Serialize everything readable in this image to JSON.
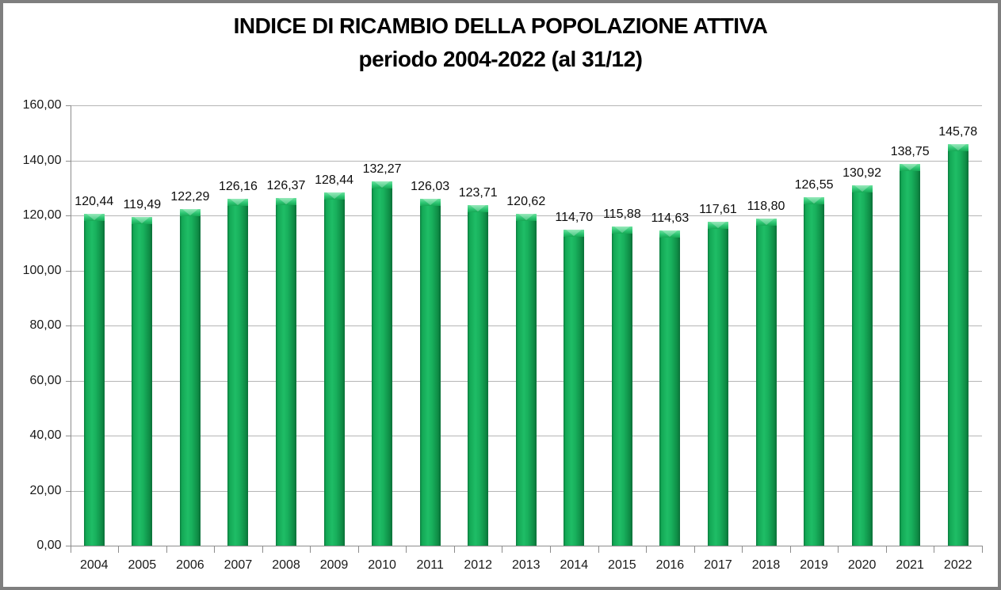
{
  "title": {
    "line1": "INDICE DI RICAMBIO DELLA POPOLAZIONE ATTIVA",
    "line2": "periodo 2004-2022 (al 31/12)"
  },
  "chart_data": {
    "type": "bar",
    "title": "INDICE DI RICAMBIO DELLA POPOLAZIONE ATTIVA — periodo 2004-2022 (al 31/12)",
    "categories": [
      "2004",
      "2005",
      "2006",
      "2007",
      "2008",
      "2009",
      "2010",
      "2011",
      "2012",
      "2013",
      "2014",
      "2015",
      "2016",
      "2017",
      "2018",
      "2019",
      "2020",
      "2021",
      "2022"
    ],
    "values": [
      120.44,
      119.49,
      122.29,
      126.16,
      126.37,
      128.44,
      132.27,
      126.03,
      123.71,
      120.62,
      114.7,
      115.88,
      114.63,
      117.61,
      118.8,
      126.55,
      130.92,
      138.75,
      145.78
    ],
    "value_labels": [
      "120,44",
      "119,49",
      "122,29",
      "126,16",
      "126,37",
      "128,44",
      "132,27",
      "126,03",
      "123,71",
      "120,62",
      "114,70",
      "115,88",
      "114,63",
      "117,61",
      "118,80",
      "126,55",
      "130,92",
      "138,75",
      "145,78"
    ],
    "xlabel": "",
    "ylabel": "",
    "ylim": [
      0,
      160
    ],
    "ytick_step": 20,
    "yticks": [
      0,
      20,
      40,
      60,
      80,
      100,
      120,
      140,
      160
    ],
    "ytick_labels": [
      "0,00",
      "20,00",
      "40,00",
      "60,00",
      "80,00",
      "100,00",
      "120,00",
      "140,00",
      "160,00"
    ],
    "grid": true,
    "legend": false,
    "colors": {
      "bar_main": "#13A855",
      "bar_edge_dark": "#0A7038",
      "bar_highlight": "#6FE2A0",
      "gridline": "#B5B5B5",
      "axis": "#8C8C8C",
      "text": "#1A1A1A",
      "frame_border": "#7F7F7F",
      "background": "#FFFFFF"
    }
  }
}
